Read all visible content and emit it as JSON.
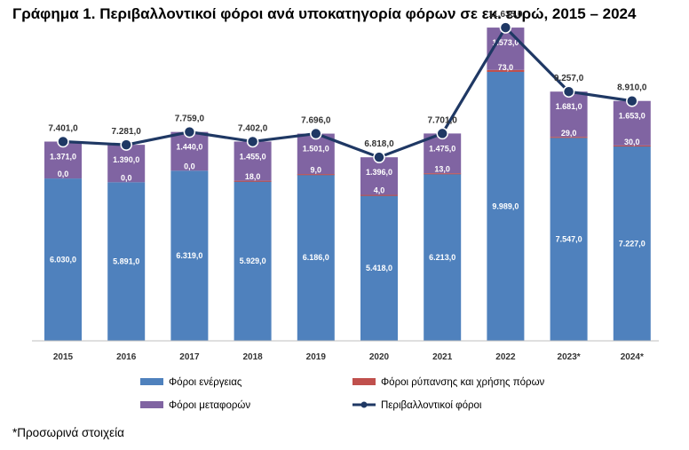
{
  "title": "Γράφημα 1. Περιβαλλοντικοί φόροι ανά υποκατηγορία φόρων σε εκ. ευρώ, 2015 – 2024",
  "footnote": "*Προσωρινά στοιχεία",
  "colors": {
    "energy": "#4f81bd",
    "pollution": "#c0504d",
    "transport": "#8064a2",
    "total": "#1f3864"
  },
  "chart_data": {
    "type": "bar",
    "stacked": true,
    "categories": [
      "2015",
      "2016",
      "2017",
      "2018",
      "2019",
      "2020",
      "2021",
      "2022",
      "2023*",
      "2024*"
    ],
    "series": [
      {
        "name": "Φόροι ενέργειας",
        "values": [
          6030.0,
          5891.0,
          6319.0,
          5929.0,
          6186.0,
          5418.0,
          6213.0,
          9989.0,
          7547.0,
          7227.0
        ],
        "labels": [
          "6.030,0",
          "5.891,0",
          "6.319,0",
          "5.929,0",
          "6.186,0",
          "5.418,0",
          "6.213,0",
          "9.989,0",
          "7.547,0",
          "7.227,0"
        ]
      },
      {
        "name": "Φόροι ρύπανσης και χρήσης πόρων",
        "values": [
          0.0,
          0.0,
          0.0,
          18.0,
          9.0,
          4.0,
          13.0,
          73.0,
          29.0,
          30.0
        ],
        "labels": [
          "0,0",
          "0,0",
          "0,0",
          "18,0",
          "9,0",
          "4,0",
          "13,0",
          "73,0",
          "29,0",
          "30,0"
        ]
      },
      {
        "name": "Φόροι μεταφορών",
        "values": [
          1371.0,
          1390.0,
          1440.0,
          1455.0,
          1501.0,
          1396.0,
          1475.0,
          1573.0,
          1681.0,
          1653.0
        ],
        "labels": [
          "1.371,0",
          "1.390,0",
          "1.440,0",
          "1.455,0",
          "1.501,0",
          "1.396,0",
          "1.475,0",
          "1.573,0",
          "1.681,0",
          "1.653,0"
        ]
      },
      {
        "name": "Περιβαλλοντικοί φόροι",
        "type": "line",
        "values": [
          7401.0,
          7281.0,
          7759.0,
          7402.0,
          7696.0,
          6818.0,
          7701.0,
          11635.0,
          9257.0,
          8910.0
        ],
        "labels": [
          "7.401,0",
          "7.281,0",
          "7.759,0",
          "7.402,0",
          "7.696,0",
          "6.818,0",
          "7.701,0",
          "11.635,0",
          "9.257,0",
          "8.910,0"
        ]
      }
    ],
    "ylim": [
      0,
      12000
    ],
    "grid": false,
    "legend_position": "bottom"
  }
}
